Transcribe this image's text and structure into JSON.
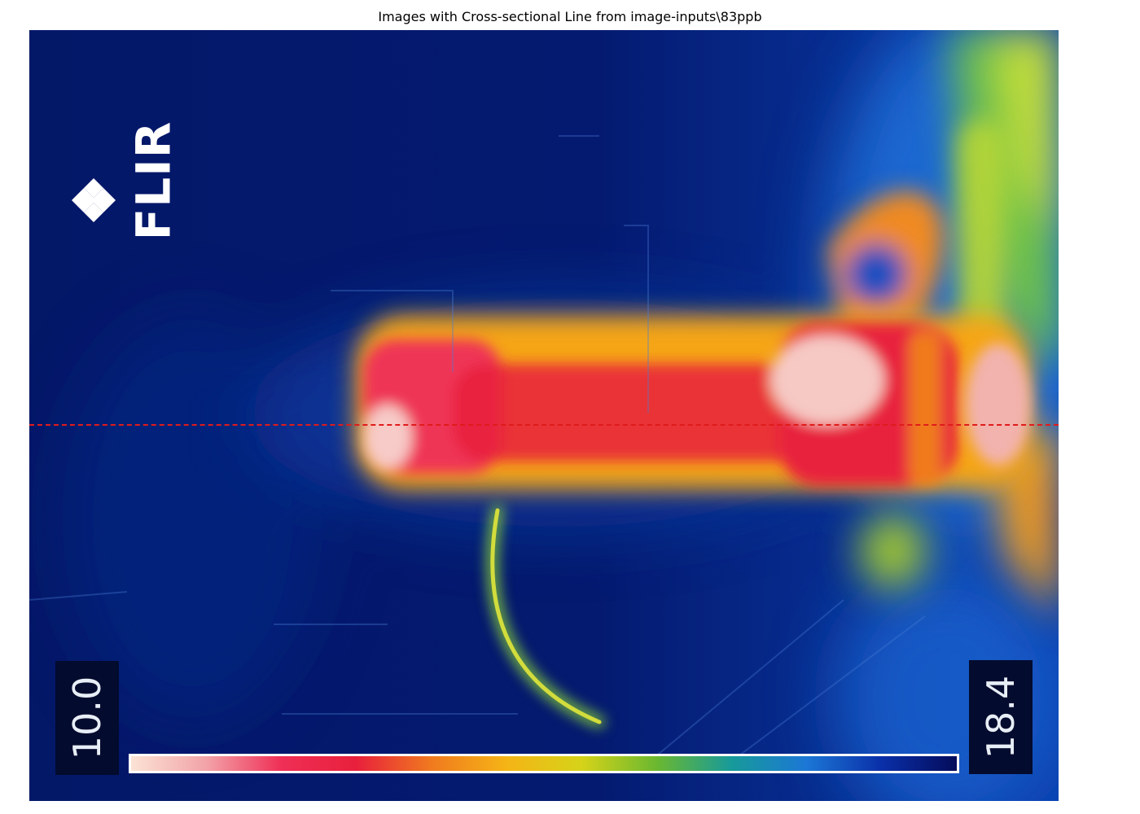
{
  "figure": {
    "title": "Images with Cross-sectional Line from image-inputs\\83ppb"
  },
  "thermal_image": {
    "brand_logo_text": "FLIR",
    "scale_min_label": "10.0",
    "scale_max_label": "18.4",
    "palette_colors": [
      "#fbe3d4",
      "#f2a3a8",
      "#ef2f56",
      "#e8203c",
      "#f07a1f",
      "#f5b416",
      "#d6d319",
      "#6bb830",
      "#179a9a",
      "#1c77d6",
      "#0a2fa8",
      "#040c5a"
    ],
    "background_color": "#031a6e",
    "hot_color": "#e8203c",
    "warm_color": "#f5a516"
  },
  "cross_section_line": {
    "color": "#e01b1b",
    "style": "dashed"
  }
}
